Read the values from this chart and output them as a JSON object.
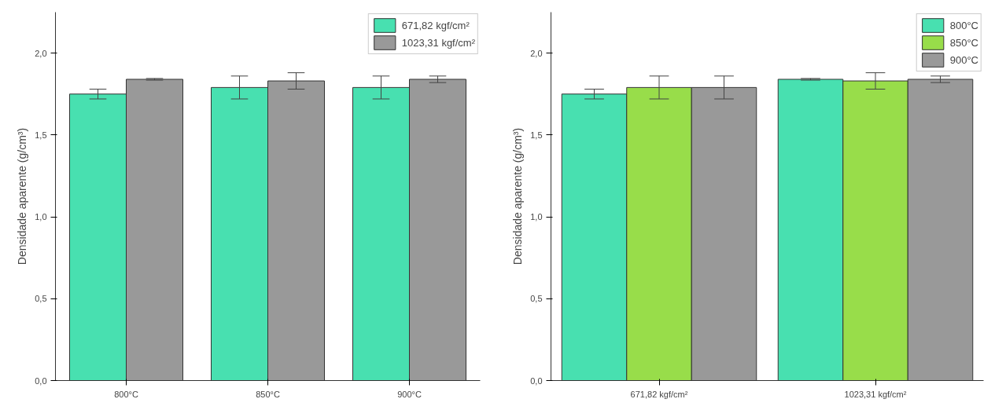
{
  "chart_data": [
    {
      "type": "bar",
      "ylabel": "Densidade aparente (g/cm³)",
      "categories": [
        "800°C",
        "850°C",
        "900°C"
      ],
      "ylim": [
        0,
        2.25
      ],
      "yticks": [
        {
          "value": 0,
          "label": "0,0"
        },
        {
          "value": 0.5,
          "label": "0,5"
        },
        {
          "value": 1,
          "label": "1,0"
        },
        {
          "value": 1.5,
          "label": "1,5"
        },
        {
          "value": 2,
          "label": "2,0"
        }
      ],
      "legend": "top right",
      "grid": false,
      "series": [
        {
          "name": "671,82 kgf/cm²",
          "color": "#48e0b0",
          "values": [
            1.75,
            1.79,
            1.79
          ],
          "errors": [
            0.03,
            0.07,
            0.07
          ]
        },
        {
          "name": "1023,31 kgf/cm²",
          "color": "#999999",
          "values": [
            1.84,
            1.83,
            1.84
          ],
          "errors": [
            0.005,
            0.05,
            0.02
          ]
        }
      ]
    },
    {
      "type": "bar",
      "ylabel": "Densidade aparente (g/cm³)",
      "categories": [
        "671,82 kgf/cm²",
        "1023,31 kgf/cm²"
      ],
      "ylim": [
        0,
        2.25
      ],
      "yticks": [
        {
          "value": 0,
          "label": "0,0"
        },
        {
          "value": 0.5,
          "label": "0,5"
        },
        {
          "value": 1,
          "label": "1,0"
        },
        {
          "value": 1.5,
          "label": "1,5"
        },
        {
          "value": 2,
          "label": "2,0"
        }
      ],
      "legend": "top right",
      "grid": false,
      "series": [
        {
          "name": "800°C",
          "color": "#48e0b0",
          "values": [
            1.75,
            1.84
          ],
          "errors": [
            0.03,
            0.005
          ]
        },
        {
          "name": "850°C",
          "color": "#98dd4a",
          "values": [
            1.79,
            1.83
          ],
          "errors": [
            0.07,
            0.05
          ]
        },
        {
          "name": "900°C",
          "color": "#999999",
          "values": [
            1.79,
            1.84
          ],
          "errors": [
            0.07,
            0.02
          ]
        }
      ]
    }
  ]
}
